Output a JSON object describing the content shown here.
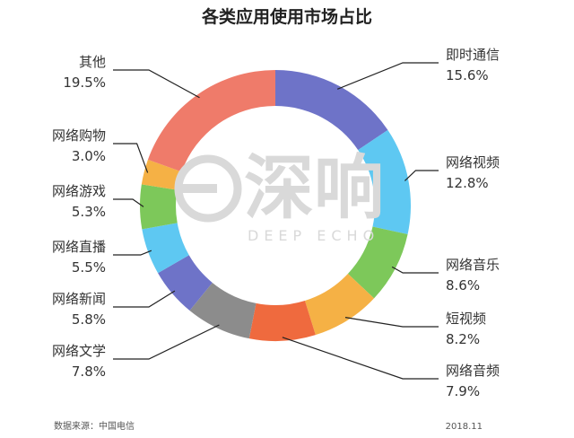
{
  "chart_data": {
    "type": "pie",
    "title": "各类应用使用市场占比",
    "series": [
      {
        "name": "即时通信",
        "value": 15.6,
        "label": "15.6%",
        "color": "#6e73c8"
      },
      {
        "name": "网络视频",
        "value": 12.8,
        "label": "12.8%",
        "color": "#5ec8f2"
      },
      {
        "name": "网络音乐",
        "value": 8.6,
        "label": "8.6%",
        "color": "#7dc85a"
      },
      {
        "name": "短视频",
        "value": 8.2,
        "label": "8.2%",
        "color": "#f5b145"
      },
      {
        "name": "网络音频",
        "value": 7.9,
        "label": "7.9%",
        "color": "#ef6a3e"
      },
      {
        "name": "网络文学",
        "value": 7.8,
        "label": "7.8%",
        "color": "#8c8c8c"
      },
      {
        "name": "网络新闻",
        "value": 5.8,
        "label": "5.8%",
        "color": "#6e73c8"
      },
      {
        "name": "网络直播",
        "value": 5.5,
        "label": "5.5%",
        "color": "#5ec8f2"
      },
      {
        "name": "网络游戏",
        "value": 5.3,
        "label": "5.3%",
        "color": "#7dc85a"
      },
      {
        "name": "网络购物",
        "value": 3.0,
        "label": "3.0%",
        "color": "#f5b145"
      },
      {
        "name": "其他",
        "value": 19.5,
        "label": "19.5%",
        "color": "#ef7b6a"
      }
    ]
  },
  "footer": {
    "source": "数据来源：中国电信",
    "date": "2018.11"
  },
  "watermark": {
    "brand": "深响",
    "brand_en": "DEEP ECHO"
  }
}
